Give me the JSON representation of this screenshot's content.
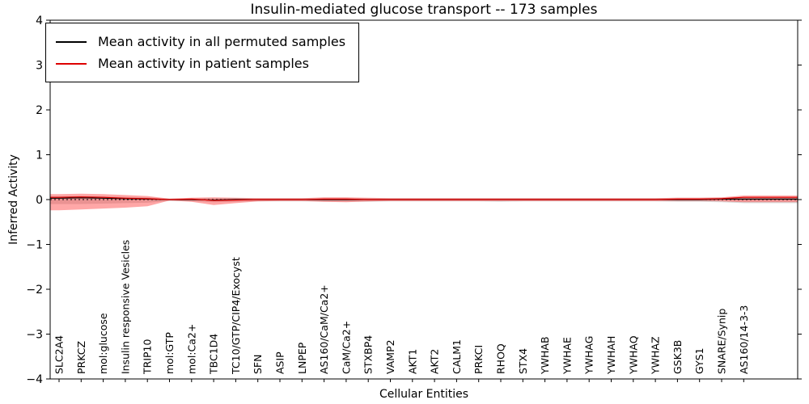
{
  "chart_data": {
    "type": "line",
    "title": "Insulin-mediated glucose transport -- 173 samples",
    "xlabel": "Cellular Entities",
    "ylabel": "Inferred Activity",
    "ylim": [
      -4,
      4
    ],
    "yticks": [
      -4,
      -3,
      -2,
      -1,
      0,
      1,
      2,
      3,
      4
    ],
    "grid": false,
    "legend_position": "upper left",
    "zero_line": "dashed",
    "categories": [
      "SLC2A4",
      "PRKCZ",
      "mol:glucose",
      "Insulin responsive Vesicles",
      "TRIP10",
      "mol:GTP",
      "mol:Ca2+",
      "TBC1D4",
      "TC10/GTP/CIP4/Exocyst",
      "SFN",
      "ASIP",
      "LNPEP",
      "AS160/CaM/Ca2+",
      "CaM/Ca2+",
      "STXBP4",
      "VAMP2",
      "AKT1",
      "AKT2",
      "CALM1",
      "PRKCI",
      "RHOQ",
      "STX4",
      "YWHAB",
      "YWHAE",
      "YWHAG",
      "YWHAH",
      "YWHAQ",
      "YWHAZ",
      "GSK3B",
      "GYS1",
      "SNARE/Synip",
      "AS160/14-3-3"
    ],
    "series": [
      {
        "name": "Mean activity in all permuted samples",
        "color": "#000000",
        "band_color": "rgba(130,130,130,0.30)",
        "values": [
          0.03,
          0.04,
          0.03,
          0.02,
          0.01,
          0.0,
          0.0,
          -0.01,
          0.0,
          0.0,
          0.0,
          0.0,
          0.0,
          0.0,
          0.0,
          0.0,
          0.0,
          0.0,
          0.0,
          0.0,
          0.0,
          0.0,
          0.0,
          0.0,
          0.0,
          0.0,
          0.0,
          0.0,
          0.0,
          0.0,
          0.01,
          0.01
        ],
        "band_lo": [
          -0.1,
          -0.1,
          -0.09,
          -0.08,
          -0.07,
          -0.03,
          -0.04,
          -0.06,
          -0.05,
          -0.04,
          -0.04,
          -0.04,
          -0.05,
          -0.05,
          -0.05,
          -0.04,
          -0.04,
          -0.04,
          -0.04,
          -0.04,
          -0.05,
          -0.04,
          -0.04,
          -0.04,
          -0.04,
          -0.04,
          -0.04,
          -0.04,
          -0.05,
          -0.05,
          -0.06,
          -0.08
        ],
        "band_hi": [
          0.07,
          0.08,
          0.07,
          0.06,
          0.05,
          0.02,
          0.03,
          0.03,
          0.03,
          0.03,
          0.03,
          0.03,
          0.04,
          0.04,
          0.03,
          0.03,
          0.03,
          0.03,
          0.03,
          0.03,
          0.03,
          0.03,
          0.03,
          0.03,
          0.03,
          0.03,
          0.03,
          0.03,
          0.04,
          0.04,
          0.04,
          0.05
        ]
      },
      {
        "name": "Mean activity in patient samples",
        "color": "#dd0000",
        "band_color": "rgba(255,60,60,0.45)",
        "values": [
          0.05,
          0.06,
          0.05,
          0.03,
          0.02,
          0.0,
          0.01,
          -0.02,
          -0.01,
          0.0,
          0.0,
          0.0,
          0.01,
          0.01,
          0.0,
          0.0,
          0.0,
          0.0,
          0.0,
          0.0,
          0.0,
          0.0,
          0.0,
          0.0,
          0.0,
          0.0,
          0.0,
          0.0,
          0.01,
          0.01,
          0.02,
          0.05
        ],
        "band_lo": [
          -0.24,
          -0.22,
          -0.2,
          -0.18,
          -0.15,
          -0.02,
          -0.05,
          -0.12,
          -0.08,
          -0.04,
          -0.03,
          -0.03,
          -0.05,
          -0.06,
          -0.04,
          -0.03,
          -0.03,
          -0.03,
          -0.03,
          -0.03,
          -0.03,
          -0.03,
          -0.03,
          -0.03,
          -0.03,
          -0.03,
          -0.03,
          -0.03,
          -0.03,
          -0.03,
          -0.04,
          -0.06
        ],
        "band_hi": [
          0.12,
          0.13,
          0.12,
          0.1,
          0.08,
          0.02,
          0.04,
          0.05,
          0.04,
          0.03,
          0.03,
          0.03,
          0.05,
          0.05,
          0.04,
          0.03,
          0.03,
          0.03,
          0.03,
          0.03,
          0.03,
          0.03,
          0.03,
          0.03,
          0.03,
          0.03,
          0.03,
          0.03,
          0.04,
          0.04,
          0.05,
          0.09
        ]
      }
    ]
  }
}
